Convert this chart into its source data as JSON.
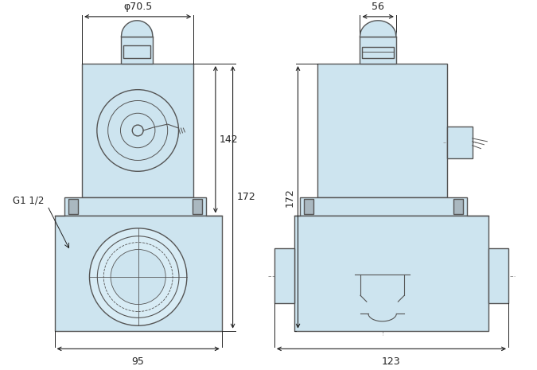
{
  "bg_color": "#ffffff",
  "valve_fill": "#cde4ef",
  "valve_fill2": "#d8ecf5",
  "valve_edge": "#555555",
  "dim_line_color": "#222222",
  "dashed_line_color": "#999999",
  "dim_labels": {
    "phi70_5": "φ70.5",
    "dim_95": "95",
    "dim_142": "142",
    "dim_172": "172",
    "dim_56": "56",
    "dim_123": "123",
    "g1_1_2": "G1 1/2"
  },
  "lw_main": 1.0,
  "lw_dim": 0.8,
  "lw_thin": 0.6
}
